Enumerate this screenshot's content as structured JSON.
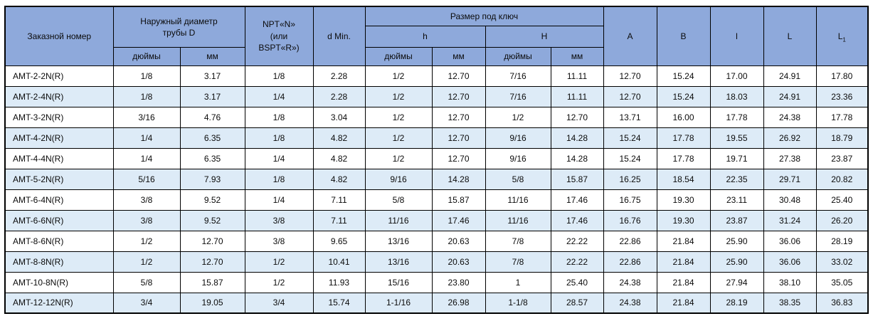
{
  "colors": {
    "header_bg": "#8EA9DB",
    "alt_row_bg": "#DDEBF7",
    "border": "#000000"
  },
  "table": {
    "headers": {
      "order_number": "Заказной номер",
      "outer_diameter": "Наружный диаметр\nтрубы D",
      "npt": "NPT«N»\n(или\nBSPT«R»)",
      "d_min": "d Min.",
      "wrench_size": "Размер под ключ",
      "h_lower": "h",
      "h_upper": "H",
      "inches": "дюймы",
      "mm": "мм",
      "col_a": "A",
      "col_b": "B",
      "col_l_small": "l",
      "col_L": "L",
      "col_L1_base": "L",
      "col_L1_sub": "1"
    },
    "rows": [
      [
        "AMT-2-2N(R)",
        "1/8",
        "3.17",
        "1/8",
        "2.28",
        "1/2",
        "12.70",
        "7/16",
        "11.11",
        "12.70",
        "15.24",
        "17.00",
        "24.91",
        "17.80"
      ],
      [
        "AMT-2-4N(R)",
        "1/8",
        "3.17",
        "1/4",
        "2.28",
        "1/2",
        "12.70",
        "7/16",
        "11.11",
        "12.70",
        "15.24",
        "18.03",
        "24.91",
        "23.36"
      ],
      [
        "AMT-3-2N(R)",
        "3/16",
        "4.76",
        "1/8",
        "3.04",
        "1/2",
        "12.70",
        "1/2",
        "12.70",
        "13.71",
        "16.00",
        "17.78",
        "24.38",
        "17.78"
      ],
      [
        "AMT-4-2N(R)",
        "1/4",
        "6.35",
        "1/8",
        "4.82",
        "1/2",
        "12.70",
        "9/16",
        "14.28",
        "15.24",
        "17.78",
        "19.55",
        "26.92",
        "18.79"
      ],
      [
        "AMT-4-4N(R)",
        "1/4",
        "6.35",
        "1/4",
        "4.82",
        "1/2",
        "12.70",
        "9/16",
        "14.28",
        "15.24",
        "17.78",
        "19.71",
        "27.38",
        "23.87"
      ],
      [
        "AMT-5-2N(R)",
        "5/16",
        "7.93",
        "1/8",
        "4.82",
        "9/16",
        "14.28",
        "5/8",
        "15.87",
        "16.25",
        "18.54",
        "22.35",
        "29.71",
        "20.82"
      ],
      [
        "AMT-6-4N(R)",
        "3/8",
        "9.52",
        "1/4",
        "7.11",
        "5/8",
        "15.87",
        "11/16",
        "17.46",
        "16.75",
        "19.30",
        "23.11",
        "30.48",
        "25.40"
      ],
      [
        "AMT-6-6N(R)",
        "3/8",
        "9.52",
        "3/8",
        "7.11",
        "11/16",
        "17.46",
        "11/16",
        "17.46",
        "16.76",
        "19.30",
        "23.87",
        "31.24",
        "26.20"
      ],
      [
        "AMT-8-6N(R)",
        "1/2",
        "12.70",
        "3/8",
        "9.65",
        "13/16",
        "20.63",
        "7/8",
        "22.22",
        "22.86",
        "21.84",
        "25.90",
        "36.06",
        "28.19"
      ],
      [
        "AMT-8-8N(R)",
        "1/2",
        "12.70",
        "1/2",
        "10.41",
        "13/16",
        "20.63",
        "7/8",
        "22.22",
        "22.86",
        "21.84",
        "25.90",
        "36.06",
        "33.02"
      ],
      [
        "AMT-10-8N(R)",
        "5/8",
        "15.87",
        "1/2",
        "11.93",
        "15/16",
        "23.80",
        "1",
        "25.40",
        "24.38",
        "21.84",
        "27.94",
        "38.10",
        "35.05"
      ],
      [
        "AMT-12-12N(R)",
        "3/4",
        "19.05",
        "3/4",
        "15.74",
        "1-1/16",
        "26.98",
        "1-1/8",
        "28.57",
        "24.38",
        "21.84",
        "28.19",
        "38.35",
        "36.83"
      ]
    ]
  }
}
